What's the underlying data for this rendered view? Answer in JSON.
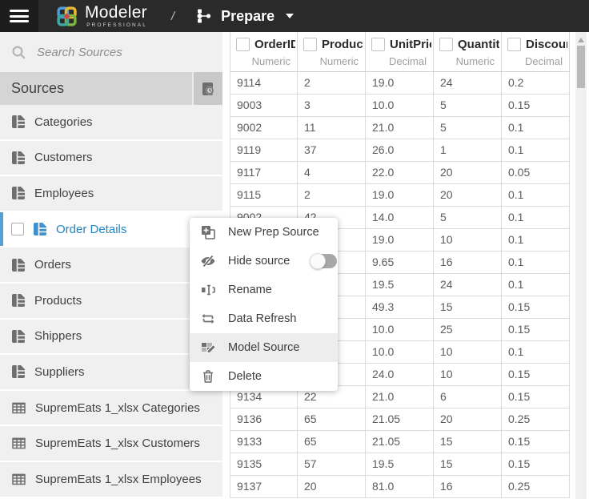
{
  "topbar": {
    "brand": "Modeler",
    "brand_sub": "PROFESSIONAL",
    "separator": "/",
    "mode": "Prepare"
  },
  "sidebar": {
    "search_placeholder": "Search Sources",
    "header": "Sources",
    "items": [
      {
        "label": "Categories",
        "icon": "table",
        "selected": false
      },
      {
        "label": "Customers",
        "icon": "table",
        "selected": false
      },
      {
        "label": "Employees",
        "icon": "table",
        "selected": false
      },
      {
        "label": "Order Details",
        "icon": "table",
        "selected": true
      },
      {
        "label": "Orders",
        "icon": "table",
        "selected": false
      },
      {
        "label": "Products",
        "icon": "table",
        "selected": false
      },
      {
        "label": "Shippers",
        "icon": "table",
        "selected": false
      },
      {
        "label": "Suppliers",
        "icon": "table",
        "selected": false
      },
      {
        "label": "SupremEats 1_xlsx Categories",
        "icon": "grid",
        "selected": false
      },
      {
        "label": "SupremEats 1_xlsx Customers",
        "icon": "grid",
        "selected": false
      },
      {
        "label": "SupremEats 1_xlsx Employees",
        "icon": "grid",
        "selected": false
      }
    ]
  },
  "context_menu": {
    "items": [
      {
        "label": "New Prep Source",
        "icon": "new-prep-source",
        "highlighted": false
      },
      {
        "label": "Hide source",
        "icon": "hide-source",
        "toggle": "off",
        "highlighted": false
      },
      {
        "label": "Rename",
        "icon": "rename",
        "highlighted": false
      },
      {
        "label": "Data Refresh",
        "icon": "data-refresh",
        "highlighted": false
      },
      {
        "label": "Model Source",
        "icon": "model-source",
        "highlighted": true
      },
      {
        "label": "Delete",
        "icon": "delete",
        "highlighted": false
      }
    ]
  },
  "table": {
    "columns": [
      {
        "name": "OrderID",
        "type": "Numeric"
      },
      {
        "name": "ProductID",
        "type": "Numeric"
      },
      {
        "name": "UnitPrice",
        "type": "Decimal"
      },
      {
        "name": "Quantity",
        "type": "Numeric"
      },
      {
        "name": "Discount",
        "type": "Decimal"
      }
    ],
    "rows": [
      [
        "9114",
        "2",
        "19.0",
        "24",
        "0.2"
      ],
      [
        "9003",
        "3",
        "10.0",
        "5",
        "0.15"
      ],
      [
        "9002",
        "11",
        "21.0",
        "5",
        "0.1"
      ],
      [
        "9119",
        "37",
        "26.0",
        "1",
        "0.1"
      ],
      [
        "9117",
        "4",
        "22.0",
        "20",
        "0.05"
      ],
      [
        "9115",
        "2",
        "19.0",
        "20",
        "0.1"
      ],
      [
        "9002",
        "42",
        "14.0",
        "5",
        "0.1"
      ],
      [
        "",
        "",
        "19.0",
        "10",
        "0.1"
      ],
      [
        "",
        "",
        "9.65",
        "16",
        "0.1"
      ],
      [
        "",
        "",
        "19.5",
        "24",
        "0.1"
      ],
      [
        "",
        "",
        "49.3",
        "15",
        "0.15"
      ],
      [
        "",
        "",
        "10.0",
        "25",
        "0.15"
      ],
      [
        "",
        "",
        "10.0",
        "10",
        "0.1"
      ],
      [
        "",
        "",
        "24.0",
        "10",
        "0.15"
      ],
      [
        "9134",
        "22",
        "21.0",
        "6",
        "0.15"
      ],
      [
        "9136",
        "65",
        "21.05",
        "20",
        "0.25"
      ],
      [
        "9133",
        "65",
        "21.05",
        "15",
        "0.15"
      ],
      [
        "9135",
        "57",
        "19.5",
        "15",
        "0.15"
      ],
      [
        "9137",
        "20",
        "81.0",
        "16",
        "0.25"
      ]
    ]
  },
  "colors": {
    "topbar_bg": "#2a2a2a",
    "accent_blue": "#2f8fce",
    "selected_border": "#56a0d3",
    "sidebar_bg": "#f0f0f0",
    "sources_header_bg": "#d5d5d5",
    "menu_highlight": "#ededed"
  }
}
